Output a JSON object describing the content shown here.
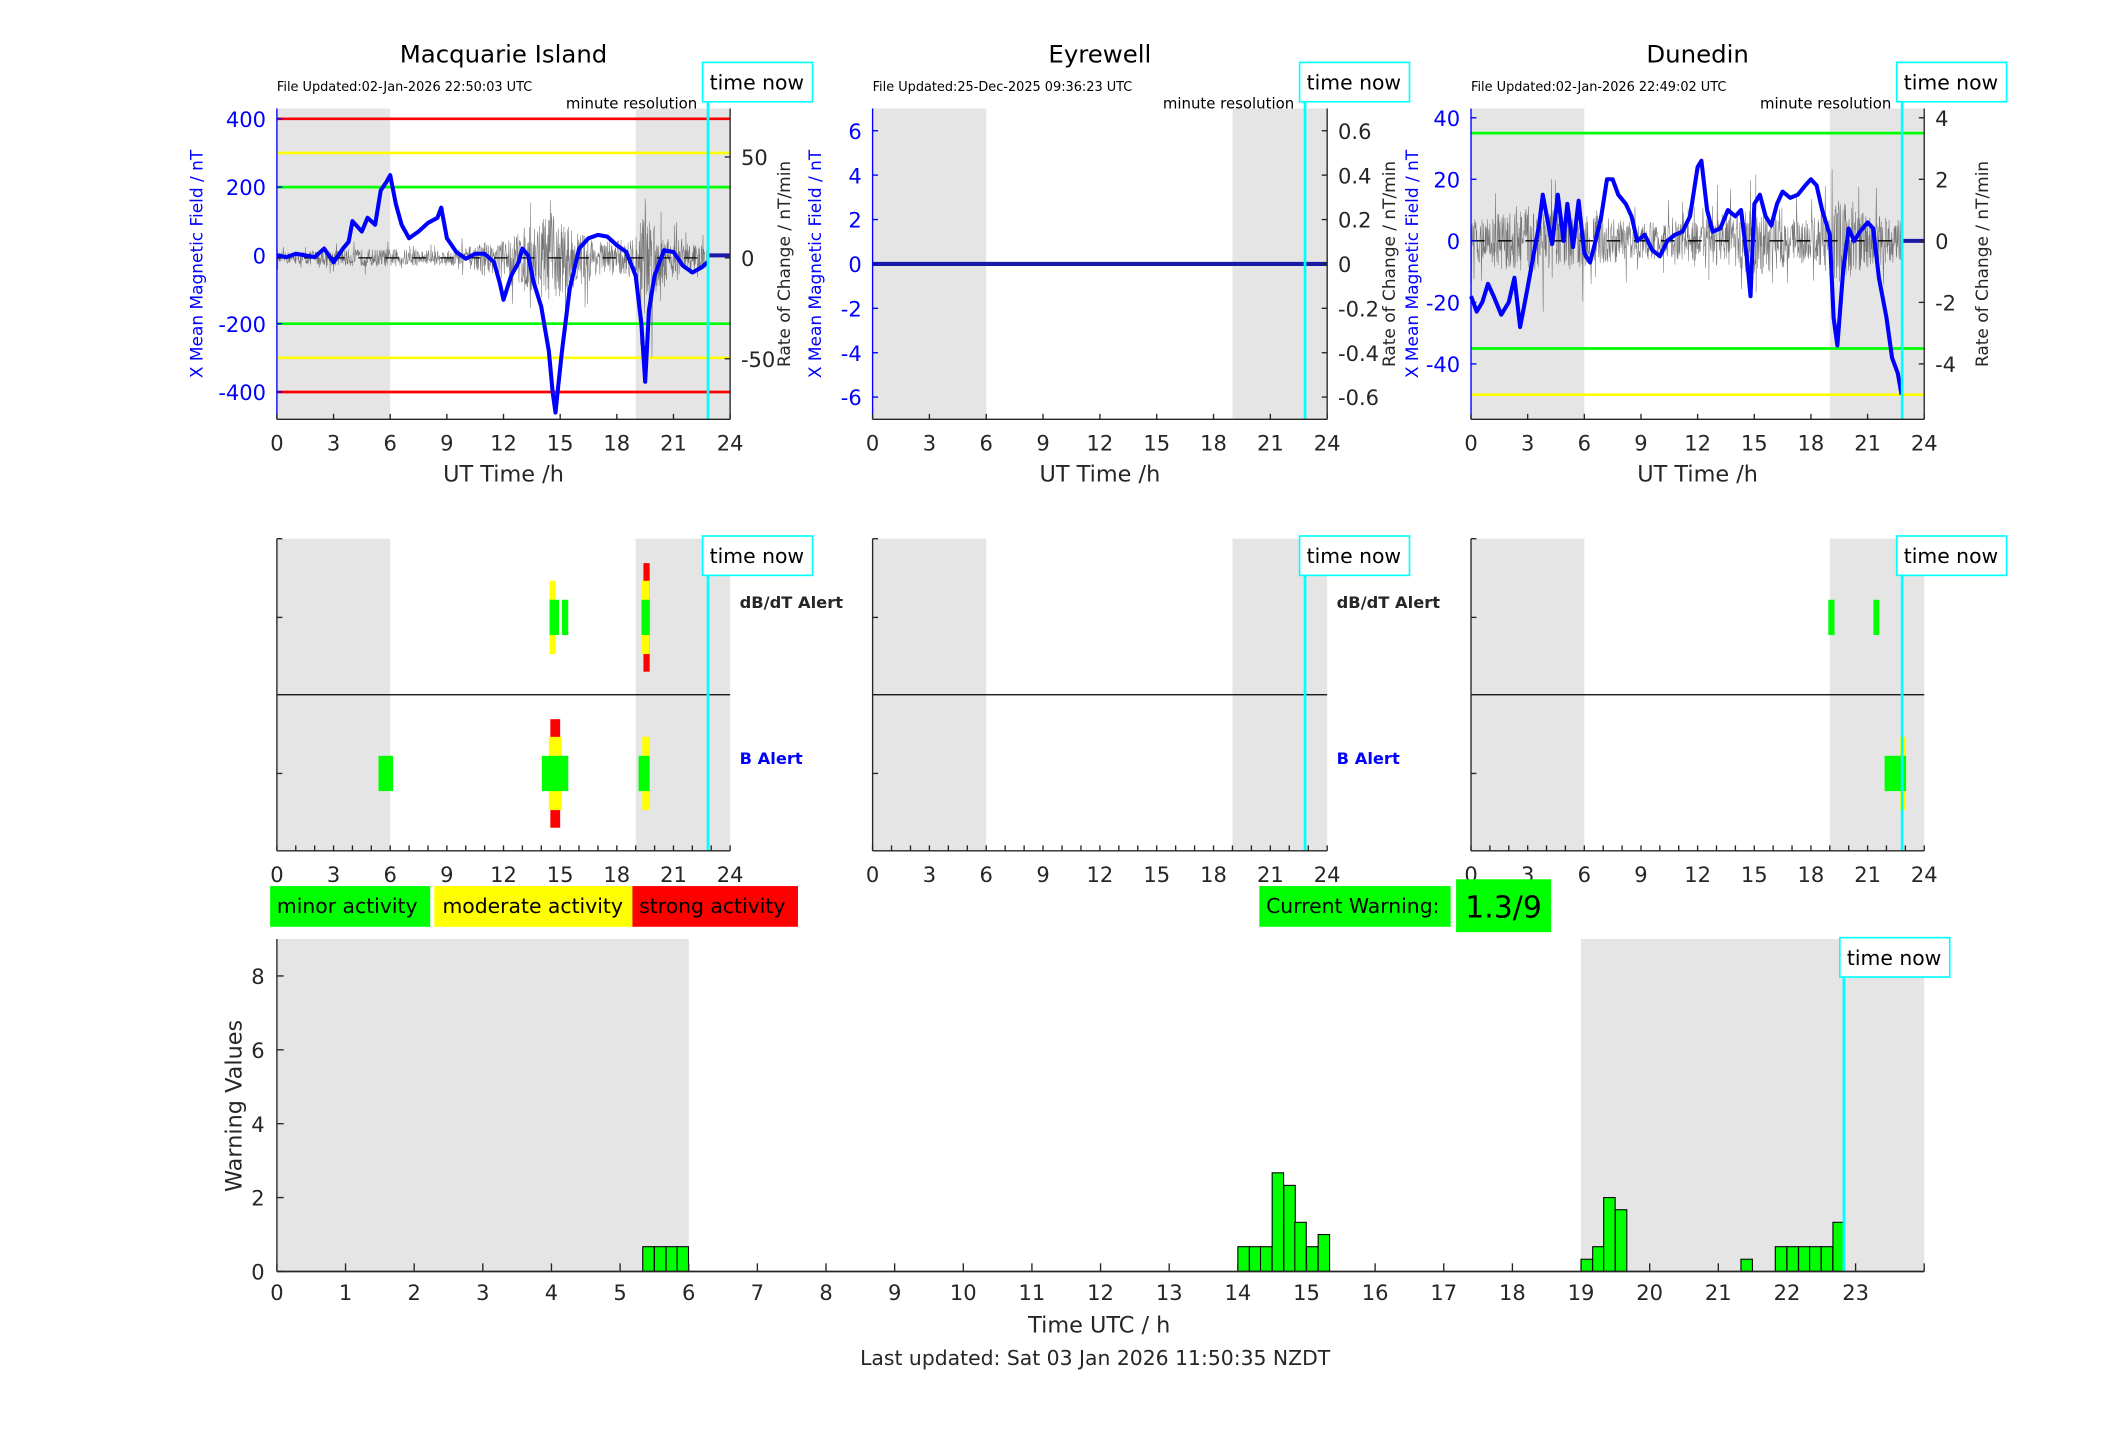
{
  "chart_data": {
    "type": "line",
    "time_now_label": "time now",
    "time_now_hour": 22.83,
    "shade_ranges": [
      [
        0,
        6
      ],
      [
        19,
        24
      ]
    ],
    "colors": {
      "shade": "#e5e5e5",
      "now": "#00ffff",
      "x_line": "#0000ff",
      "minor": "#00ff00",
      "moderate": "#ffff00",
      "strong": "#ff0000"
    },
    "panels": [
      {
        "title": "Macquarie Island",
        "file_updated": "File Updated:02-Jan-2026 22:50:03 UTC",
        "resolution": "minute resolution",
        "ylabel": "X Mean Magnetic Field / nT",
        "y2label": "Rate of Change / nT/min",
        "xlabel": "UT Time /h",
        "xlim": [
          0,
          24
        ],
        "xticks": [
          0,
          3,
          6,
          9,
          12,
          15,
          18,
          21,
          24
        ],
        "ylim": [
          -480,
          430
        ],
        "yticks": [
          -400,
          -200,
          0,
          200,
          400
        ],
        "y2lim": [
          -80,
          74
        ],
        "y2ticks": [
          -50,
          0,
          50
        ],
        "zero_dashed": true,
        "thresholds": [
          {
            "value": 400,
            "color": "#ff0000"
          },
          {
            "value": -400,
            "color": "#ff0000"
          },
          {
            "value": 300,
            "color": "#ffff00"
          },
          {
            "value": -300,
            "color": "#ffff00"
          },
          {
            "value": 200,
            "color": "#00ff00"
          },
          {
            "value": -200,
            "color": "#00ff00"
          }
        ],
        "x_series": [
          [
            0,
            0
          ],
          [
            0.5,
            -5
          ],
          [
            1,
            5
          ],
          [
            1.5,
            0
          ],
          [
            2,
            -5
          ],
          [
            2.5,
            20
          ],
          [
            3,
            -20
          ],
          [
            3.5,
            20
          ],
          [
            3.8,
            40
          ],
          [
            4,
            100
          ],
          [
            4.5,
            70
          ],
          [
            4.8,
            110
          ],
          [
            5.2,
            90
          ],
          [
            5.5,
            190
          ],
          [
            5.8,
            215
          ],
          [
            6,
            235
          ],
          [
            6.3,
            150
          ],
          [
            6.6,
            90
          ],
          [
            7,
            50
          ],
          [
            7.5,
            70
          ],
          [
            8,
            95
          ],
          [
            8.5,
            110
          ],
          [
            8.7,
            140
          ],
          [
            9,
            50
          ],
          [
            9.5,
            10
          ],
          [
            10,
            -10
          ],
          [
            10.5,
            5
          ],
          [
            11,
            5
          ],
          [
            11.5,
            -20
          ],
          [
            11.8,
            -80
          ],
          [
            12,
            -130
          ],
          [
            12.4,
            -60
          ],
          [
            12.8,
            -20
          ],
          [
            13,
            20
          ],
          [
            13.3,
            0
          ],
          [
            13.6,
            -80
          ],
          [
            14,
            -150
          ],
          [
            14.4,
            -280
          ],
          [
            14.6,
            -400
          ],
          [
            14.75,
            -460
          ],
          [
            14.9,
            -380
          ],
          [
            15.1,
            -280
          ],
          [
            15.5,
            -100
          ],
          [
            16,
            20
          ],
          [
            16.5,
            50
          ],
          [
            17,
            60
          ],
          [
            17.5,
            55
          ],
          [
            18,
            30
          ],
          [
            18.5,
            10
          ],
          [
            19,
            -60
          ],
          [
            19.3,
            -200
          ],
          [
            19.5,
            -370
          ],
          [
            19.7,
            -160
          ],
          [
            20,
            -60
          ],
          [
            20.5,
            15
          ],
          [
            21,
            10
          ],
          [
            21.5,
            -30
          ],
          [
            22,
            -50
          ],
          [
            22.5,
            -35
          ],
          [
            22.8,
            -20
          ]
        ],
        "roc_envelope": [
          [
            0,
            6
          ],
          [
            3,
            9
          ],
          [
            6,
            10
          ],
          [
            9,
            8
          ],
          [
            12,
            20
          ],
          [
            14.5,
            50
          ],
          [
            15.5,
            35
          ],
          [
            17,
            18
          ],
          [
            19,
            22
          ],
          [
            19.5,
            70
          ],
          [
            20.5,
            25
          ],
          [
            22.8,
            12
          ]
        ],
        "alerts": {
          "dbdt_label": "dB/dT Alert",
          "b_label": "B Alert",
          "dbdt": [
            {
              "t0": 14.44,
              "t1": 14.76,
              "tier": 2,
              "color": "#ffff00"
            },
            {
              "t0": 14.44,
              "t1": 14.94,
              "tier": 1,
              "color": "#00ff00"
            },
            {
              "t0": 15.09,
              "t1": 15.43,
              "tier": 1,
              "color": "#00ff00"
            },
            {
              "t0": 19.41,
              "t1": 19.74,
              "tier": 3,
              "color": "#ff0000"
            },
            {
              "t0": 19.31,
              "t1": 19.74,
              "tier": 2,
              "color": "#ffff00"
            },
            {
              "t0": 19.31,
              "t1": 19.74,
              "tier": 1,
              "color": "#00ff00"
            }
          ],
          "b": [
            {
              "t0": 5.38,
              "t1": 6.15,
              "tier": 1,
              "color": "#00ff00"
            },
            {
              "t0": 14.48,
              "t1": 15.0,
              "tier": 3,
              "color": "#ff0000"
            },
            {
              "t0": 14.4,
              "t1": 15.09,
              "tier": 2,
              "color": "#ffff00"
            },
            {
              "t0": 14.03,
              "t1": 15.43,
              "tier": 1,
              "color": "#00ff00"
            },
            {
              "t0": 19.35,
              "t1": 19.74,
              "tier": 2,
              "color": "#ffff00"
            },
            {
              "t0": 19.15,
              "t1": 19.74,
              "tier": 1,
              "color": "#00ff00"
            }
          ]
        }
      },
      {
        "title": "Eyrewell",
        "file_updated": "File Updated:25-Dec-2025 09:36:23 UTC",
        "resolution": "minute resolution",
        "ylabel": "X Mean Magnetic Field / nT",
        "y2label": "Rate of Change / nT/min",
        "xlabel": "UT Time /h",
        "xlim": [
          0,
          24
        ],
        "xticks": [
          0,
          3,
          6,
          9,
          12,
          15,
          18,
          21,
          24
        ],
        "ylim": [
          -7,
          7
        ],
        "yticks": [
          -6,
          -4,
          -2,
          0,
          2,
          4,
          6
        ],
        "y2lim": [
          -0.7,
          0.7
        ],
        "y2ticks": [
          -0.6,
          -0.4,
          -0.2,
          0,
          0.2,
          0.4,
          0.6
        ],
        "zero_dashed": false,
        "thresholds": [],
        "x_series": [
          [
            0,
            0
          ],
          [
            24,
            0
          ]
        ],
        "roc_envelope": [],
        "alerts": {
          "dbdt_label": "dB/dT Alert",
          "b_label": "B Alert",
          "dbdt": [],
          "b": []
        }
      },
      {
        "title": "Dunedin",
        "file_updated": "File Updated:02-Jan-2026 22:49:02 UTC",
        "resolution": "minute resolution",
        "ylabel": "X Mean Magnetic Field / nT",
        "y2label": "Rate of Change / nT/min",
        "xlabel": "UT Time /h",
        "xlim": [
          0,
          24
        ],
        "xticks": [
          0,
          3,
          6,
          9,
          12,
          15,
          18,
          21,
          24
        ],
        "ylim": [
          -58,
          43
        ],
        "yticks": [
          -40,
          -20,
          0,
          20,
          40
        ],
        "y2lim": [
          -5.8,
          4.3
        ],
        "y2ticks": [
          -4,
          -2,
          0,
          2,
          4
        ],
        "zero_dashed": true,
        "thresholds": [
          {
            "value": 35,
            "color": "#00ff00"
          },
          {
            "value": -35,
            "color": "#00ff00"
          },
          {
            "value": -50,
            "color": "#ffff00"
          }
        ],
        "x_series": [
          [
            0,
            -18
          ],
          [
            0.3,
            -23
          ],
          [
            0.6,
            -20
          ],
          [
            0.9,
            -14
          ],
          [
            1.2,
            -18
          ],
          [
            1.6,
            -24
          ],
          [
            2,
            -20
          ],
          [
            2.3,
            -12
          ],
          [
            2.6,
            -28
          ],
          [
            3,
            -15
          ],
          [
            3.3,
            -5
          ],
          [
            3.6,
            5
          ],
          [
            3.8,
            15
          ],
          [
            4.1,
            5
          ],
          [
            4.3,
            -1
          ],
          [
            4.6,
            15
          ],
          [
            4.9,
            0
          ],
          [
            5.1,
            12
          ],
          [
            5.4,
            -2
          ],
          [
            5.7,
            13
          ],
          [
            6,
            -4
          ],
          [
            6.3,
            -7
          ],
          [
            6.6,
            0
          ],
          [
            6.9,
            8
          ],
          [
            7.2,
            20
          ],
          [
            7.5,
            20
          ],
          [
            7.8,
            15
          ],
          [
            8.2,
            12
          ],
          [
            8.5,
            8
          ],
          [
            8.8,
            0
          ],
          [
            9.2,
            2
          ],
          [
            9.6,
            -3
          ],
          [
            10,
            -5
          ],
          [
            10.4,
            0
          ],
          [
            10.8,
            2
          ],
          [
            11.2,
            3
          ],
          [
            11.6,
            8
          ],
          [
            12,
            24
          ],
          [
            12.2,
            26
          ],
          [
            12.5,
            10
          ],
          [
            12.8,
            3
          ],
          [
            13.2,
            4
          ],
          [
            13.6,
            10
          ],
          [
            14,
            8
          ],
          [
            14.3,
            10
          ],
          [
            14.6,
            -5
          ],
          [
            14.8,
            -18
          ],
          [
            15,
            12
          ],
          [
            15.3,
            15
          ],
          [
            15.6,
            8
          ],
          [
            15.9,
            5
          ],
          [
            16.2,
            12
          ],
          [
            16.5,
            16
          ],
          [
            16.9,
            14
          ],
          [
            17.3,
            15
          ],
          [
            17.7,
            18
          ],
          [
            18,
            20
          ],
          [
            18.3,
            18
          ],
          [
            18.6,
            10
          ],
          [
            19,
            2
          ],
          [
            19.2,
            -25
          ],
          [
            19.4,
            -34
          ],
          [
            19.7,
            -10
          ],
          [
            20,
            4
          ],
          [
            20.3,
            0
          ],
          [
            20.6,
            3
          ],
          [
            21,
            6
          ],
          [
            21.3,
            4
          ],
          [
            21.6,
            -12
          ],
          [
            22,
            -25
          ],
          [
            22.3,
            -38
          ],
          [
            22.6,
            -43
          ],
          [
            22.8,
            -50
          ]
        ],
        "roc_envelope": [
          [
            0,
            1.5
          ],
          [
            3,
            2.5
          ],
          [
            6,
            2
          ],
          [
            9,
            1.3
          ],
          [
            12,
            1.5
          ],
          [
            15,
            2.5
          ],
          [
            18,
            1.5
          ],
          [
            19.5,
            3
          ],
          [
            21,
            2
          ],
          [
            22.8,
            1.5
          ]
        ],
        "alerts": {
          "dbdt": [
            {
              "t0": 18.92,
              "t1": 19.25,
              "tier": 1,
              "color": "#00ff00"
            },
            {
              "t0": 21.31,
              "t1": 21.62,
              "tier": 1,
              "color": "#00ff00"
            }
          ],
          "b": [
            {
              "t0": 22.7,
              "t1": 23.04,
              "tier": 2,
              "color": "#ffff00"
            },
            {
              "t0": 21.9,
              "t1": 23.04,
              "tier": 1,
              "color": "#00ff00"
            }
          ]
        }
      }
    ],
    "legend": {
      "minor": "minor activity",
      "moderate": "moderate activity",
      "strong": "strong activity"
    },
    "current_warning": {
      "label": "Current Warning:",
      "value": "1.3/9"
    },
    "warning_chart": {
      "type": "bar",
      "ylabel": "Warning Values",
      "xlabel": "Time UTC / h",
      "xlim": [
        0,
        24
      ],
      "xticks": [
        0,
        1,
        2,
        3,
        4,
        5,
        6,
        7,
        8,
        9,
        10,
        11,
        12,
        13,
        14,
        15,
        16,
        17,
        18,
        19,
        20,
        21,
        22,
        23
      ],
      "ylim": [
        0,
        9
      ],
      "yticks": [
        0,
        2,
        4,
        6,
        8
      ],
      "bar_width_h": 0.1667,
      "bars": [
        [
          5.33,
          0.67
        ],
        [
          5.5,
          0.67
        ],
        [
          5.67,
          0.67
        ],
        [
          5.83,
          0.67
        ],
        [
          14.0,
          0.67
        ],
        [
          14.17,
          0.67
        ],
        [
          14.33,
          0.67
        ],
        [
          14.5,
          2.67
        ],
        [
          14.67,
          2.33
        ],
        [
          14.83,
          1.33
        ],
        [
          15.0,
          0.67
        ],
        [
          15.17,
          1.0
        ],
        [
          19.0,
          0.33
        ],
        [
          19.17,
          0.67
        ],
        [
          19.33,
          2.0
        ],
        [
          19.5,
          1.67
        ],
        [
          21.33,
          0.33
        ],
        [
          21.83,
          0.67
        ],
        [
          22.0,
          0.67
        ],
        [
          22.17,
          0.67
        ],
        [
          22.33,
          0.67
        ],
        [
          22.5,
          0.67
        ],
        [
          22.67,
          1.33
        ]
      ]
    },
    "footer": "Last updated: Sat 03 Jan 2026 11:50:35 NZDT"
  }
}
